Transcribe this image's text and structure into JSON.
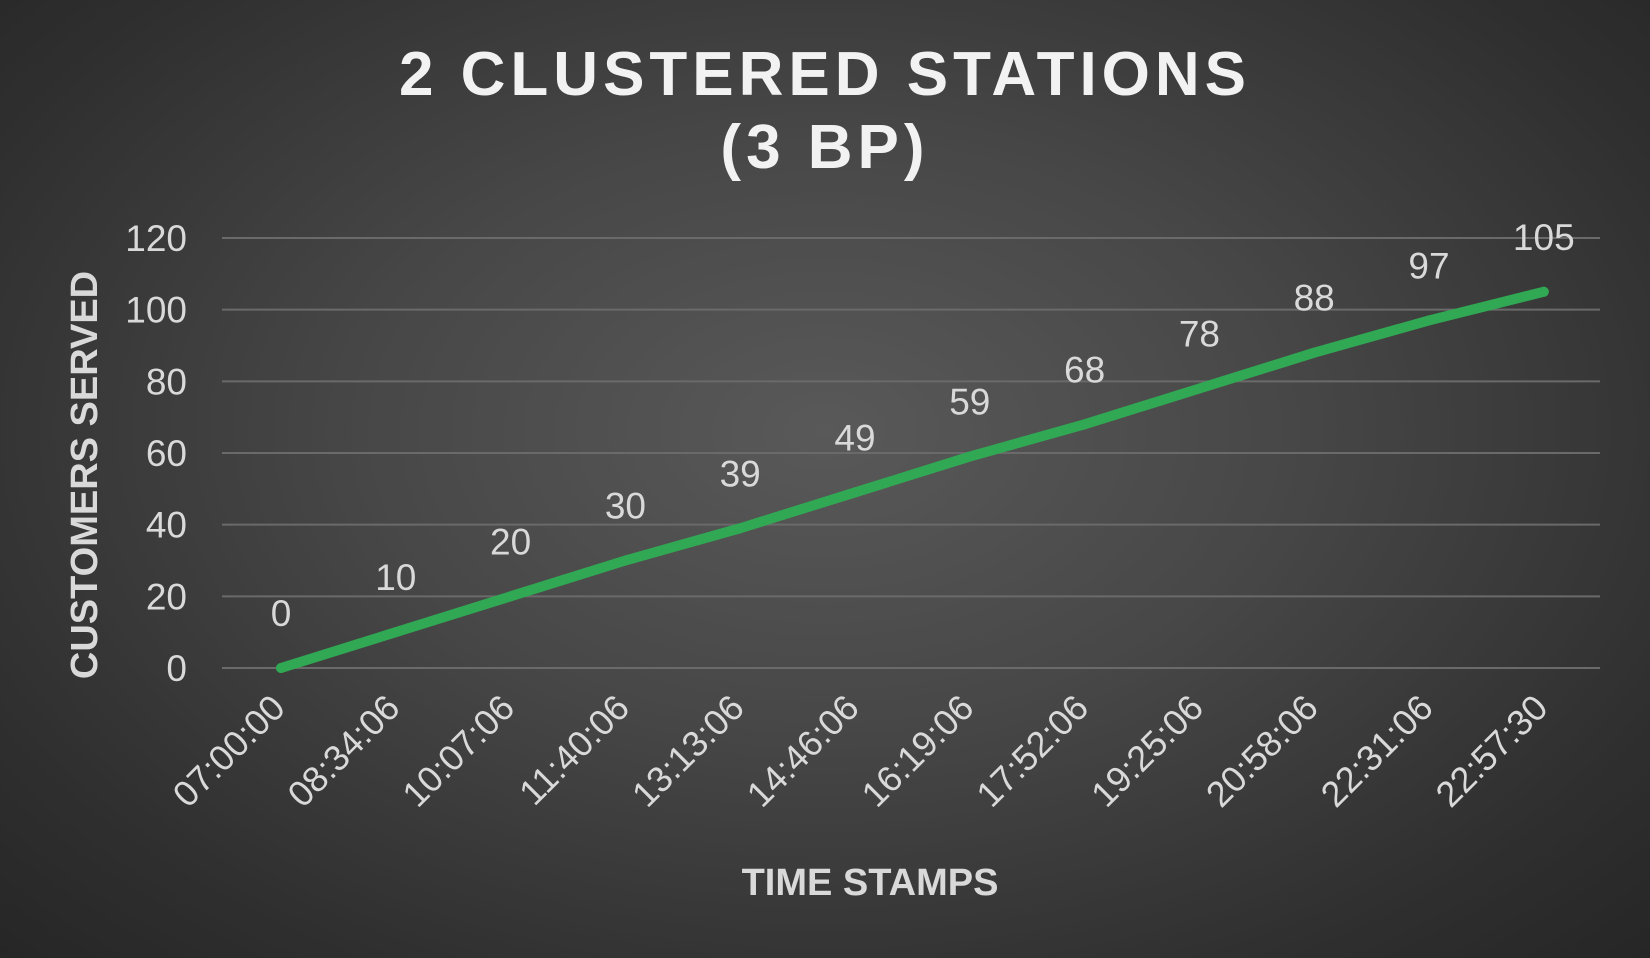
{
  "chart_data": {
    "type": "line",
    "title_lines": [
      "2 CLUSTERED STATIONS",
      "(3 BP)"
    ],
    "xlabel": "TIME STAMPS",
    "ylabel": "CUSTOMERS SERVED",
    "categories": [
      "07:00:00",
      "08:34:06",
      "10:07:06",
      "11:40:06",
      "13:13:06",
      "14:46:06",
      "16:19:06",
      "17:52:06",
      "19:25:06",
      "20:58:06",
      "22:31:06",
      "22:57:30"
    ],
    "series": [
      {
        "values": [
          0,
          10,
          20,
          30,
          39,
          49,
          59,
          68,
          78,
          88,
          97,
          105
        ],
        "color": "#31a853"
      }
    ],
    "ylim": [
      0,
      120
    ],
    "y_ticks": [
      0,
      20,
      40,
      60,
      80,
      100,
      120
    ],
    "grid": true,
    "data_labels": true,
    "legend": "none"
  }
}
